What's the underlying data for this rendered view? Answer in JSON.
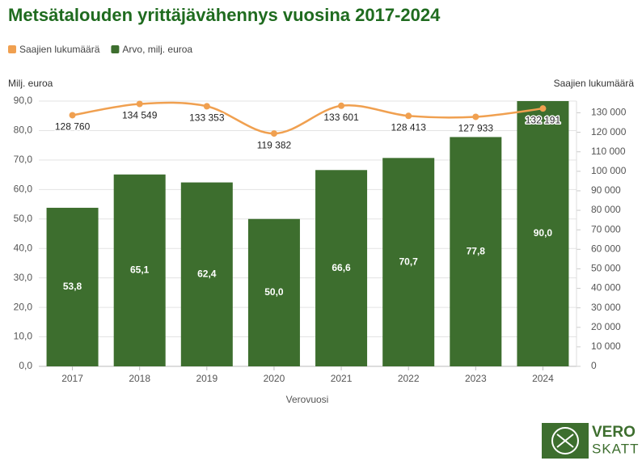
{
  "chart_data": {
    "type": "bar-line",
    "title": "Metsätalouden yrittäjävähennys vuosina 2017-2024",
    "y_label": "Milj. euroa",
    "y2_label": "Saajien lukumäärä",
    "x_label": "Verovuosi",
    "categories": [
      "2017",
      "2018",
      "2019",
      "2020",
      "2021",
      "2022",
      "2023",
      "2024"
    ],
    "series": [
      {
        "name": "Saajien lukumäärä",
        "type": "line",
        "axis": "y2",
        "color": "#f0a050",
        "values": [
          128760,
          134549,
          133353,
          119382,
          133601,
          128413,
          127933,
          132191
        ],
        "value_labels": [
          "128 760",
          "134 549",
          "133 353",
          "119 382",
          "133 601",
          "128 413",
          "127 933",
          "132 191"
        ]
      },
      {
        "name": "Arvo, milj. euroa",
        "type": "bar",
        "axis": "y",
        "color": "#3d6e2e",
        "values": [
          53.8,
          65.1,
          62.4,
          50.0,
          66.6,
          70.7,
          77.8,
          90.0
        ],
        "value_labels": [
          "53,8",
          "65,1",
          "62,4",
          "50,0",
          "66,6",
          "70,7",
          "77,8",
          "90,0"
        ]
      }
    ],
    "ylim": [
      0,
      90
    ],
    "yticks": [
      {
        "value": 0,
        "label": "0,0"
      },
      {
        "value": 10,
        "label": "10,0"
      },
      {
        "value": 20,
        "label": "20,0"
      },
      {
        "value": 30,
        "label": "30,0"
      },
      {
        "value": 40,
        "label": "40,0"
      },
      {
        "value": 50,
        "label": "50,0"
      },
      {
        "value": 60,
        "label": "60,0"
      },
      {
        "value": 70,
        "label": "70,0"
      },
      {
        "value": 80,
        "label": "80,0"
      },
      {
        "value": 90,
        "label": "90,0"
      }
    ],
    "y2lim": [
      0,
      136000
    ],
    "y2ticks": [
      0,
      {
        "value": 10000,
        "label": "10 000"
      },
      {
        "value": 20000,
        "label": "20 000"
      },
      {
        "value": 30000,
        "label": "30 000"
      },
      {
        "value": 40000,
        "label": "40 000"
      },
      {
        "value": 50000,
        "label": "50 000"
      },
      {
        "value": 60000,
        "label": "60 000"
      },
      {
        "value": 70000,
        "label": "70 000"
      },
      {
        "value": 80000,
        "label": "80 000"
      },
      {
        "value": 90000,
        "label": "90 000"
      },
      {
        "value": 100000,
        "label": "100 000"
      },
      {
        "value": 110000,
        "label": "110 000"
      },
      {
        "value": 120000,
        "label": "120 000"
      },
      {
        "value": 130000,
        "label": "130 000"
      }
    ],
    "grid": true,
    "legend": "top-left"
  },
  "logo": {
    "line1": "VERO",
    "line2": "SKATT"
  }
}
